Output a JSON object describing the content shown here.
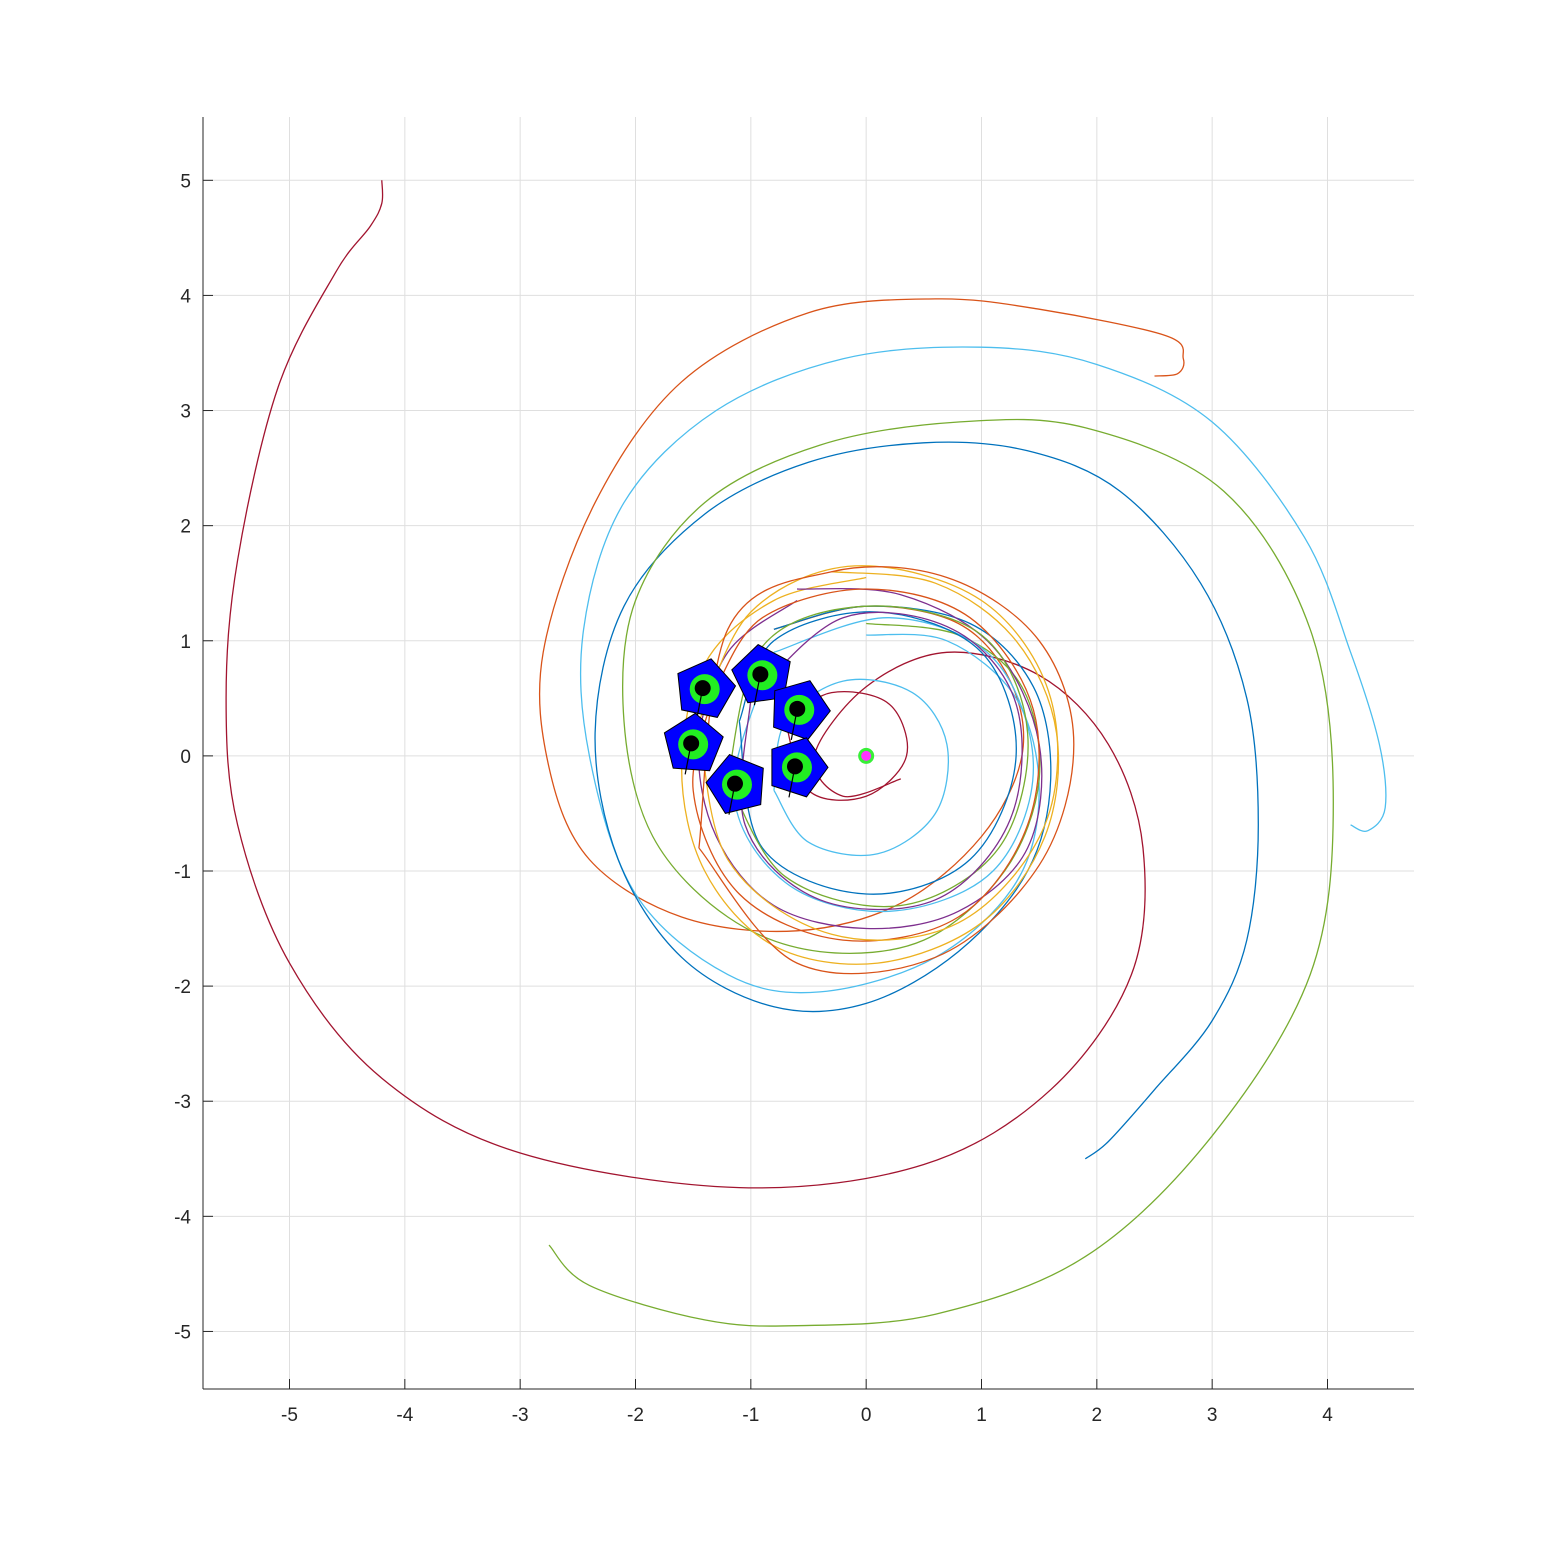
{
  "chart_data": {
    "type": "line",
    "title": "",
    "xlabel": "",
    "ylabel": "",
    "xlim": [
      -5.75,
      4.75
    ],
    "ylim": [
      -5.5,
      5.55
    ],
    "grid": true,
    "xticks": [
      -5,
      -4,
      -3,
      -2,
      -1,
      0,
      1,
      2,
      3,
      4
    ],
    "yticks": [
      -5,
      -4,
      -3,
      -2,
      -1,
      0,
      1,
      2,
      3,
      4,
      5
    ],
    "xtick_labels": [
      "-5",
      "-4",
      "-3",
      "-2",
      "-1",
      "0",
      "1",
      "2",
      "3",
      "4"
    ],
    "ytick_labels": [
      "-5",
      "-4",
      "-3",
      "-2",
      "-1",
      "0",
      "1",
      "2",
      "3",
      "4",
      "5"
    ],
    "center": [
      0,
      0
    ],
    "series": [
      {
        "color": "#A2142F",
        "points": [
          [
            -4.2,
            5.0
          ],
          [
            -4.2,
            4.8
          ],
          [
            -4.3,
            4.6
          ],
          [
            -4.6,
            4.2
          ],
          [
            -5.1,
            3.2
          ],
          [
            -5.45,
            1.7
          ],
          [
            -5.55,
            0.5
          ],
          [
            -5.45,
            -0.6
          ],
          [
            -5.0,
            -1.8
          ],
          [
            -4.2,
            -2.8
          ],
          [
            -3.0,
            -3.45
          ],
          [
            -1.1,
            -3.75
          ],
          [
            0.5,
            -3.55
          ],
          [
            1.6,
            -2.9
          ],
          [
            2.3,
            -1.9
          ],
          [
            2.4,
            -0.8
          ],
          [
            2.1,
            0.1
          ],
          [
            1.5,
            0.7
          ],
          [
            0.7,
            0.9
          ],
          [
            0.0,
            0.6
          ],
          [
            -0.45,
            0.0
          ],
          [
            -0.2,
            -0.35
          ],
          [
            0.3,
            -0.2
          ]
        ]
      },
      {
        "color": "#D95319",
        "points": [
          [
            2.5,
            3.3
          ],
          [
            2.7,
            3.32
          ],
          [
            2.75,
            3.45
          ],
          [
            2.6,
            3.65
          ],
          [
            1.5,
            3.88
          ],
          [
            0.6,
            3.97
          ],
          [
            -0.5,
            3.85
          ],
          [
            -1.6,
            3.25
          ],
          [
            -2.35,
            2.2
          ],
          [
            -2.8,
            0.9
          ],
          [
            -2.75,
            -0.1
          ],
          [
            -2.4,
            -0.9
          ],
          [
            -1.6,
            -1.4
          ],
          [
            -0.6,
            -1.52
          ],
          [
            0.3,
            -1.28
          ],
          [
            1.0,
            -0.7
          ],
          [
            1.35,
            0.0
          ],
          [
            1.25,
            0.65
          ],
          [
            0.8,
            1.15
          ],
          [
            0.0,
            1.3
          ],
          [
            -0.8,
            1.1
          ]
        ]
      },
      {
        "color": "#4DBEEE",
        "points": [
          [
            4.2,
            -0.6
          ],
          [
            4.35,
            -0.65
          ],
          [
            4.5,
            -0.45
          ],
          [
            4.45,
            0.1
          ],
          [
            4.2,
            0.9
          ],
          [
            3.8,
            1.9
          ],
          [
            3.0,
            2.9
          ],
          [
            2.0,
            3.4
          ],
          [
            1.0,
            3.55
          ],
          [
            -0.2,
            3.45
          ],
          [
            -1.3,
            3.0
          ],
          [
            -2.1,
            2.2
          ],
          [
            -2.45,
            1.1
          ],
          [
            -2.4,
            0.0
          ],
          [
            -2.0,
            -1.2
          ],
          [
            -1.2,
            -1.9
          ],
          [
            -0.4,
            -2.05
          ],
          [
            0.6,
            -1.75
          ],
          [
            1.3,
            -1.1
          ],
          [
            1.5,
            -0.3
          ],
          [
            1.3,
            0.5
          ],
          [
            0.7,
            1.0
          ],
          [
            0.0,
            1.05
          ]
        ]
      },
      {
        "color": "#0072BD",
        "points": [
          [
            1.9,
            -3.5
          ],
          [
            2.1,
            -3.35
          ],
          [
            2.5,
            -2.9
          ],
          [
            3.0,
            -2.3
          ],
          [
            3.3,
            -1.6
          ],
          [
            3.4,
            -0.6
          ],
          [
            3.3,
            0.5
          ],
          [
            2.9,
            1.5
          ],
          [
            2.2,
            2.3
          ],
          [
            1.4,
            2.65
          ],
          [
            0.5,
            2.72
          ],
          [
            -0.5,
            2.55
          ],
          [
            -1.4,
            2.1
          ],
          [
            -2.1,
            1.3
          ],
          [
            -2.35,
            0.2
          ],
          [
            -2.15,
            -0.9
          ],
          [
            -1.6,
            -1.75
          ],
          [
            -0.8,
            -2.18
          ],
          [
            0.0,
            -2.15
          ],
          [
            0.8,
            -1.7
          ],
          [
            1.4,
            -1.0
          ],
          [
            1.6,
            -0.2
          ],
          [
            1.45,
            0.6
          ],
          [
            0.9,
            1.15
          ],
          [
            0.0,
            1.3
          ],
          [
            -0.8,
            1.1
          ]
        ]
      },
      {
        "color": "#77AC30",
        "points": [
          [
            -2.75,
            -4.25
          ],
          [
            -2.4,
            -4.6
          ],
          [
            -1.4,
            -4.9
          ],
          [
            -0.6,
            -4.95
          ],
          [
            0.6,
            -4.85
          ],
          [
            1.9,
            -4.35
          ],
          [
            3.0,
            -3.3
          ],
          [
            3.85,
            -1.9
          ],
          [
            4.05,
            -0.4
          ],
          [
            3.85,
            1.1
          ],
          [
            3.1,
            2.3
          ],
          [
            1.9,
            2.85
          ],
          [
            0.8,
            2.9
          ],
          [
            -0.4,
            2.7
          ],
          [
            -1.4,
            2.2
          ],
          [
            -2.0,
            1.35
          ],
          [
            -2.1,
            0.3
          ],
          [
            -1.85,
            -0.7
          ],
          [
            -1.2,
            -1.4
          ],
          [
            -0.4,
            -1.7
          ],
          [
            0.5,
            -1.6
          ],
          [
            1.2,
            -1.0
          ],
          [
            1.5,
            -0.2
          ],
          [
            1.35,
            0.6
          ],
          [
            0.8,
            1.05
          ],
          [
            0.0,
            1.15
          ]
        ]
      },
      {
        "color": "#EDB120",
        "points": [
          [
            -0.3,
            1.6
          ],
          [
            0.6,
            1.5
          ],
          [
            1.3,
            1.0
          ],
          [
            1.65,
            0.2
          ],
          [
            1.55,
            -0.7
          ],
          [
            1.0,
            -1.45
          ],
          [
            0.1,
            -1.8
          ],
          [
            -0.8,
            -1.65
          ],
          [
            -1.4,
            -1.0
          ],
          [
            -1.6,
            -0.1
          ],
          [
            -1.4,
            0.8
          ],
          [
            -0.8,
            1.35
          ],
          [
            0.0,
            1.55
          ]
        ]
      },
      {
        "color": "#7E2F8E",
        "points": [
          [
            -0.6,
            1.45
          ],
          [
            0.3,
            1.4
          ],
          [
            1.1,
            0.95
          ],
          [
            1.5,
            0.1
          ],
          [
            1.4,
            -0.8
          ],
          [
            0.8,
            -1.35
          ],
          [
            0.0,
            -1.5
          ],
          [
            -0.8,
            -1.3
          ],
          [
            -1.3,
            -0.7
          ],
          [
            -1.45,
            0.1
          ],
          [
            -1.2,
            0.9
          ],
          [
            -0.6,
            1.35
          ]
        ]
      },
      {
        "color": "#D95319",
        "points": [
          [
            -1.3,
            0.6
          ],
          [
            -1.5,
            -0.3
          ],
          [
            -1.1,
            -1.2
          ],
          [
            -0.2,
            -1.6
          ],
          [
            0.8,
            -1.4
          ],
          [
            1.4,
            -0.6
          ],
          [
            1.45,
            0.4
          ],
          [
            0.9,
            1.2
          ],
          [
            0.0,
            1.45
          ],
          [
            -0.9,
            1.2
          ],
          [
            -1.3,
            0.6
          ]
        ]
      },
      {
        "color": "#4DBEEE",
        "points": [
          [
            -0.8,
            0.9
          ],
          [
            0.2,
            1.2
          ],
          [
            1.1,
            0.85
          ],
          [
            1.45,
            -0.1
          ],
          [
            1.1,
            -1.0
          ],
          [
            0.2,
            -1.35
          ],
          [
            -0.7,
            -1.1
          ],
          [
            -1.15,
            -0.3
          ],
          [
            -0.8,
            0.9
          ]
        ]
      },
      {
        "color": "#0072BD",
        "points": [
          [
            -1.1,
            0.3
          ],
          [
            -0.9,
            -0.8
          ],
          [
            0.0,
            -1.2
          ],
          [
            0.9,
            -0.9
          ],
          [
            1.3,
            0.0
          ],
          [
            1.0,
            0.9
          ],
          [
            0.1,
            1.25
          ],
          [
            -0.8,
            1.0
          ],
          [
            -1.1,
            0.3
          ]
        ]
      },
      {
        "color": "#77AC30",
        "points": [
          [
            -1.2,
            -0.2
          ],
          [
            -0.7,
            -1.05
          ],
          [
            0.3,
            -1.3
          ],
          [
            1.15,
            -0.8
          ],
          [
            1.4,
            0.2
          ],
          [
            1.0,
            1.05
          ],
          [
            0.0,
            1.3
          ],
          [
            -0.9,
            0.95
          ],
          [
            -1.2,
            -0.2
          ]
        ]
      },
      {
        "color": "#EDB120",
        "points": [
          [
            -1.45,
            0.3
          ],
          [
            -1.2,
            -0.9
          ],
          [
            -0.3,
            -1.55
          ],
          [
            0.8,
            -1.45
          ],
          [
            1.55,
            -0.6
          ],
          [
            1.6,
            0.5
          ],
          [
            1.0,
            1.35
          ],
          [
            -0.1,
            1.65
          ],
          [
            -1.0,
            1.25
          ],
          [
            -1.45,
            0.3
          ]
        ]
      },
      {
        "color": "#7E2F8E",
        "points": [
          [
            -1.0,
            0.5
          ],
          [
            -1.05,
            -0.6
          ],
          [
            -0.4,
            -1.25
          ],
          [
            0.6,
            -1.25
          ],
          [
            1.25,
            -0.55
          ],
          [
            1.3,
            0.45
          ],
          [
            0.75,
            1.1
          ],
          [
            -0.2,
            1.2
          ],
          [
            -1.0,
            0.5
          ]
        ]
      },
      {
        "color": "#A2142F",
        "points": [
          [
            -0.7,
            0.3
          ],
          [
            -0.5,
            -0.3
          ],
          [
            0.0,
            -0.35
          ],
          [
            0.35,
            0.0
          ],
          [
            0.2,
            0.45
          ],
          [
            -0.3,
            0.55
          ],
          [
            -0.7,
            0.3
          ]
        ]
      },
      {
        "color": "#4DBEEE",
        "points": [
          [
            -0.8,
            -0.3
          ],
          [
            -0.5,
            -0.75
          ],
          [
            0.1,
            -0.85
          ],
          [
            0.6,
            -0.5
          ],
          [
            0.7,
            0.1
          ],
          [
            0.4,
            0.55
          ],
          [
            -0.2,
            0.65
          ],
          [
            -0.7,
            0.3
          ],
          [
            -0.8,
            -0.3
          ]
        ]
      },
      {
        "color": "#D95319",
        "points": [
          [
            -1.45,
            -0.8
          ],
          [
            -0.6,
            -1.8
          ],
          [
            0.6,
            -1.75
          ],
          [
            1.5,
            -0.95
          ],
          [
            1.8,
            0.1
          ],
          [
            1.5,
            1.0
          ],
          [
            0.7,
            1.55
          ],
          [
            -0.3,
            1.6
          ],
          [
            -1.2,
            1.1
          ],
          [
            -1.45,
            -0.8
          ]
        ]
      }
    ],
    "robots": [
      {
        "x": -1.4,
        "y": 0.58
      },
      {
        "x": -0.9,
        "y": 0.7
      },
      {
        "x": -0.58,
        "y": 0.4
      },
      {
        "x": -1.5,
        "y": 0.1
      },
      {
        "x": -1.12,
        "y": -0.25
      },
      {
        "x": -0.6,
        "y": -0.1
      }
    ],
    "target": {
      "x": 0,
      "y": 0
    }
  },
  "colors": {
    "robot_body": "#0000FF",
    "robot_ring": "#22EE22",
    "robot_core": "#000000",
    "target": "#FF33FF"
  }
}
